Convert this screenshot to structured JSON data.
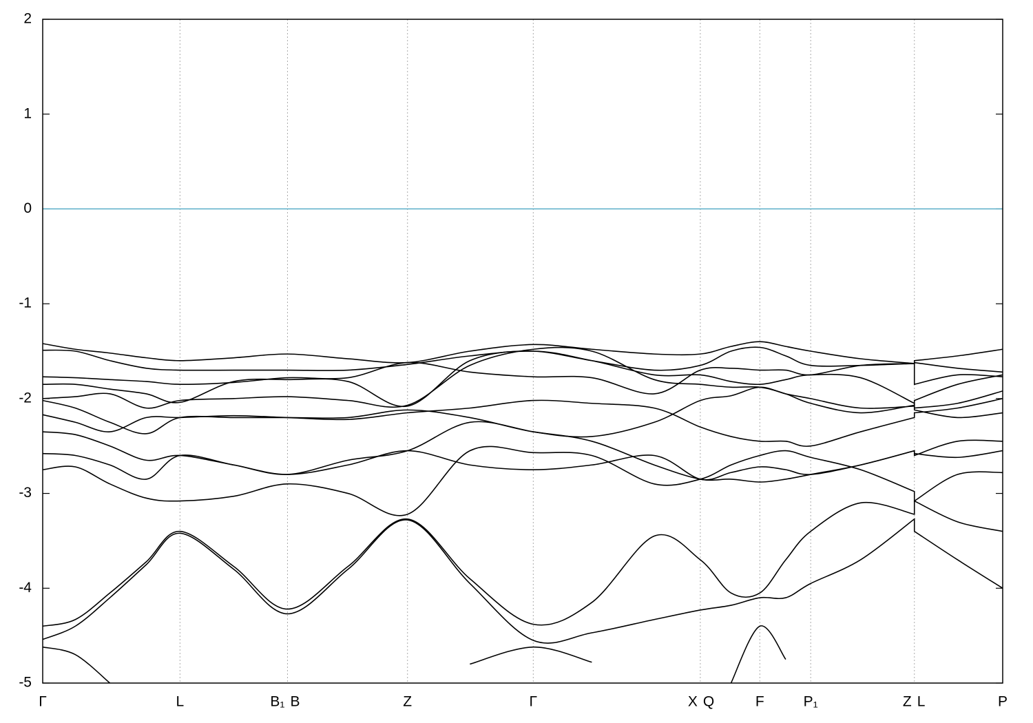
{
  "chart_data": {
    "type": "line",
    "ylim": [
      -5,
      2
    ],
    "yticks": [
      2,
      1,
      0,
      -1,
      -2,
      -3,
      -4,
      -5
    ],
    "xlim": [
      0,
      1
    ],
    "kpoints": [
      {
        "label": "Γ",
        "x": 0
      },
      {
        "label": "L",
        "x": 0.143
      },
      {
        "label": "B₁",
        "x": 0.255
      },
      {
        "label": "B",
        "x": 0.255
      },
      {
        "label": "Z",
        "x": 0.38
      },
      {
        "label": "Γ",
        "x": 0.511
      },
      {
        "label": "X",
        "x": 0.685
      },
      {
        "label": "Q",
        "x": 0.685
      },
      {
        "label": "F",
        "x": 0.747
      },
      {
        "label": "P₁",
        "x": 0.8
      },
      {
        "label": "Z",
        "x": 0.908
      },
      {
        "label": "L",
        "x": 0.908
      },
      {
        "label": "P",
        "x": 1
      }
    ],
    "fermi_level": 0,
    "fermi_color": "#5aaec8",
    "x": [
      0,
      0.034,
      0.07,
      0.108,
      0.143,
      0.199,
      0.255,
      0.318,
      0.38,
      0.445,
      0.511,
      0.572,
      0.637,
      0.685,
      0.717,
      0.747,
      0.774,
      0.8,
      0.852,
      0.908,
      0.908,
      0.953,
      1
    ],
    "series": [
      {
        "color": "#000000",
        "values": [
          -4.62,
          -4.7,
          -5.0,
          null,
          null,
          null,
          null,
          null,
          null,
          -4.8,
          -4.62,
          -4.78,
          null,
          null,
          -5.0,
          -4.4,
          -4.75,
          null,
          null,
          null,
          null,
          null,
          null
        ]
      },
      {
        "color": "#000000",
        "values": [
          -4.54,
          -4.4,
          -4.1,
          -3.75,
          -3.42,
          -3.8,
          -4.27,
          -3.8,
          -3.28,
          -3.95,
          -4.55,
          -4.47,
          -4.33,
          -4.23,
          -4.18,
          -4.1,
          -4.1,
          -3.95,
          -3.7,
          -3.27,
          -3.4,
          -3.7,
          -4.0
        ]
      },
      {
        "color": "#000000",
        "values": [
          -4.4,
          -4.33,
          -4.05,
          -3.72,
          -3.4,
          -3.77,
          -4.22,
          -3.77,
          -3.27,
          -3.9,
          -4.38,
          -4.15,
          -3.45,
          -3.7,
          -4.05,
          -4.05,
          -3.7,
          -3.4,
          -3.1,
          -3.22,
          -3.08,
          -3.3,
          -3.4
        ]
      },
      {
        "color": "#000000",
        "values": [
          -2.75,
          -2.72,
          -2.9,
          -3.05,
          -3.08,
          -3.03,
          -2.9,
          -3.0,
          -3.22,
          -2.55,
          -2.57,
          -2.6,
          -2.9,
          -2.85,
          -2.7,
          -2.6,
          -2.55,
          -2.62,
          -2.75,
          -2.98,
          -3.08,
          -2.8,
          -2.78
        ]
      },
      {
        "color": "#000000",
        "values": [
          -2.58,
          -2.6,
          -2.7,
          -2.85,
          -2.6,
          -2.7,
          -2.8,
          -2.7,
          -2.55,
          -2.7,
          -2.75,
          -2.7,
          -2.6,
          -2.85,
          -2.78,
          -2.72,
          -2.75,
          -2.8,
          -2.7,
          -2.55,
          -2.58,
          -2.62,
          -2.55
        ]
      },
      {
        "color": "#000000",
        "values": [
          -2.35,
          -2.38,
          -2.5,
          -2.65,
          -2.6,
          -2.7,
          -2.8,
          -2.65,
          -2.55,
          -2.25,
          -2.35,
          -2.45,
          -2.7,
          -2.85,
          -2.85,
          -2.88,
          -2.85,
          -2.8,
          -2.7,
          -2.55,
          -2.6,
          -2.45,
          -2.45
        ]
      },
      {
        "color": "#000000",
        "values": [
          -2.17,
          -2.25,
          -2.35,
          -2.2,
          -2.2,
          -2.18,
          -2.2,
          -2.22,
          -2.15,
          -2.1,
          -2.02,
          -2.05,
          -2.1,
          -2.3,
          -2.4,
          -2.45,
          -2.45,
          -2.5,
          -2.35,
          -2.2,
          -2.15,
          -2.1,
          -2.0
        ]
      },
      {
        "color": "#000000",
        "values": [
          -2.02,
          -2.1,
          -2.25,
          -2.37,
          -2.2,
          -2.2,
          -2.2,
          -2.2,
          -2.12,
          -2.2,
          -2.35,
          -2.4,
          -2.25,
          -2.02,
          -1.97,
          -1.88,
          -1.95,
          -2.0,
          -2.1,
          -2.08,
          -2.02,
          -1.85,
          -1.75
        ]
      },
      {
        "color": "#000000",
        "values": [
          -2.0,
          -1.98,
          -1.95,
          -2.1,
          -2.02,
          -2.0,
          -1.98,
          -2.02,
          -2.07,
          -1.65,
          -1.48,
          -1.5,
          -1.8,
          -1.85,
          -1.88,
          -1.88,
          -1.95,
          -2.05,
          -2.15,
          -2.07,
          -2.12,
          -2.2,
          -2.15
        ]
      },
      {
        "color": "#000000",
        "values": [
          -1.85,
          -1.85,
          -1.9,
          -1.95,
          -2.04,
          -1.82,
          -1.8,
          -1.82,
          -2.08,
          -1.6,
          -1.5,
          -1.6,
          -1.75,
          -1.75,
          -1.82,
          -1.85,
          -1.8,
          -1.75,
          -1.78,
          -2.05,
          -2.1,
          -2.05,
          -1.92
        ]
      },
      {
        "color": "#000000",
        "values": [
          -1.77,
          -1.78,
          -1.8,
          -1.82,
          -1.85,
          -1.83,
          -1.78,
          -1.78,
          -1.62,
          -1.72,
          -1.77,
          -1.78,
          -1.95,
          -1.7,
          -1.68,
          -1.7,
          -1.7,
          -1.75,
          -1.65,
          -1.63,
          -1.85,
          -1.75,
          -1.77
        ]
      },
      {
        "color": "#000000",
        "values": [
          -1.49,
          -1.5,
          -1.6,
          -1.68,
          -1.7,
          -1.7,
          -1.7,
          -1.7,
          -1.64,
          -1.55,
          -1.5,
          -1.6,
          -1.7,
          -1.65,
          -1.5,
          -1.46,
          -1.55,
          -1.65,
          -1.65,
          -1.63,
          -1.62,
          -1.68,
          -1.72
        ]
      },
      {
        "color": "#000000",
        "values": [
          -1.42,
          -1.48,
          -1.52,
          -1.57,
          -1.6,
          -1.57,
          -1.53,
          -1.58,
          -1.62,
          -1.5,
          -1.43,
          -1.48,
          -1.53,
          -1.53,
          -1.45,
          -1.4,
          -1.45,
          -1.5,
          -1.58,
          -1.63,
          -1.6,
          -1.55,
          -1.48
        ]
      }
    ]
  }
}
